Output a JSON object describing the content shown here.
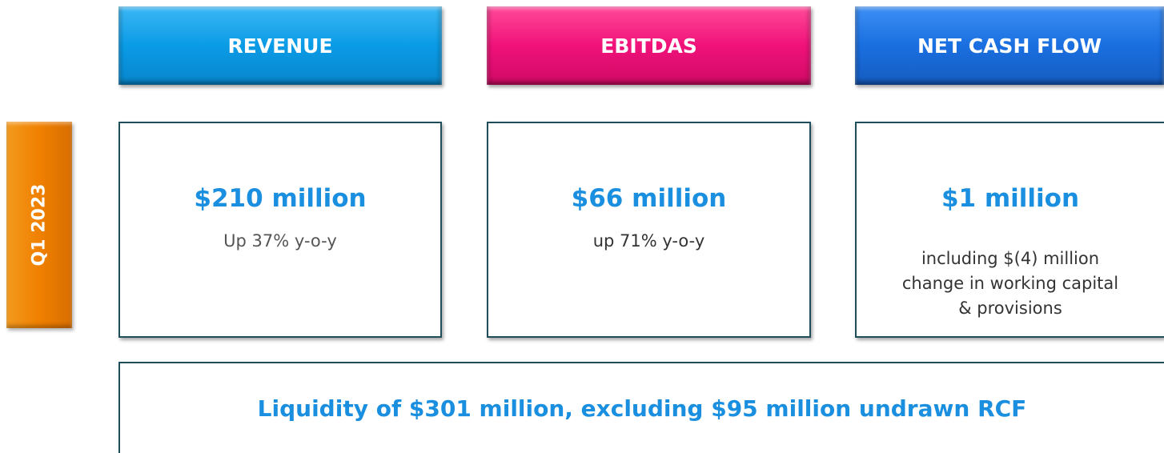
{
  "period": "Q1 2023",
  "cards": [
    {
      "header": "REVENUE",
      "value": "$210 million",
      "note": "Up 37% y-o-y"
    },
    {
      "header": "EBITDAS",
      "value": "$66 million",
      "note": "up 71% y-o-y"
    },
    {
      "header": "NET CASH FLOW",
      "value": "$1 million",
      "note": "including $(4) million change in working capital & provisions"
    }
  ],
  "footer": "Liquidity of $301 million, excluding $95 million undrawn RCF"
}
